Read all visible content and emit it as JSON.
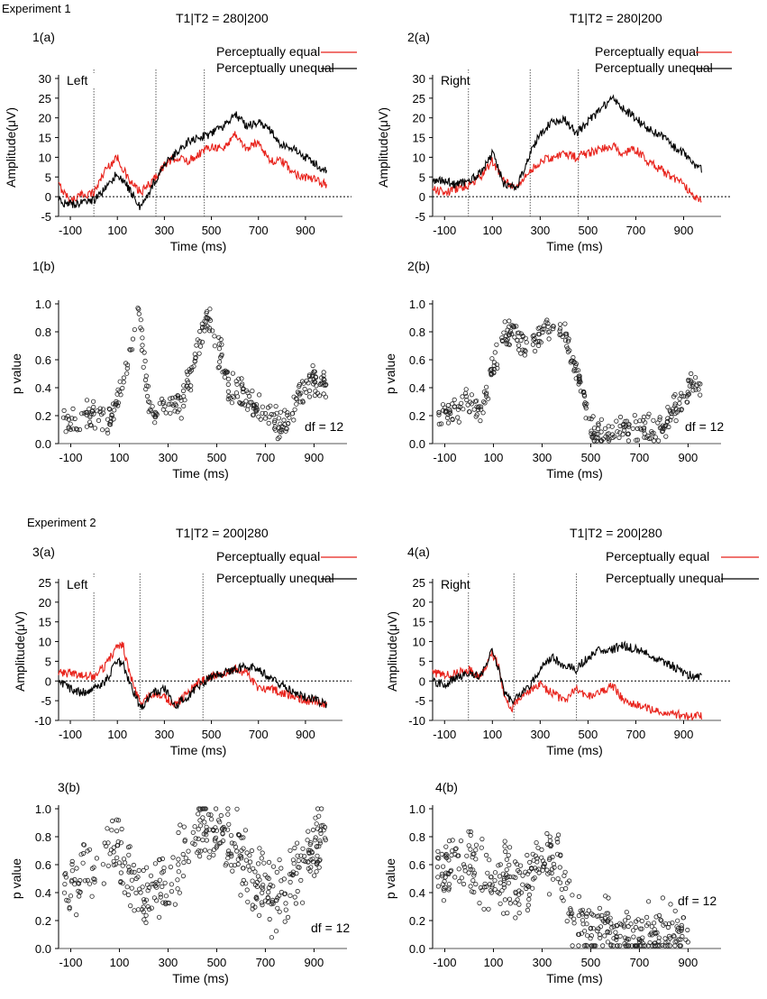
{
  "figure": {
    "experiments": [
      "Experiment 1",
      "Experiment 2"
    ]
  },
  "chart_data": [
    {
      "id": "1a",
      "type": "line",
      "panel_label": "1(a)",
      "title": "T1|T2 = 280|200",
      "side_label": "Left",
      "xlabel": "Time (ms)",
      "ylabel": "Amplitude(μV)",
      "xlim": [
        -150,
        1000
      ],
      "ylim": [
        -5,
        30
      ],
      "xticks": [
        -100,
        100,
        300,
        500,
        700,
        900
      ],
      "yticks": [
        -5,
        0,
        5,
        10,
        15,
        20,
        25,
        30
      ],
      "vlines": [
        0,
        264,
        470
      ],
      "legend": [
        "Perceptually equal",
        "Perceptually unequal"
      ],
      "series": [
        {
          "name": "Perceptually equal",
          "color": "#e8221b",
          "x": [
            -150,
            -100,
            -50,
            0,
            50,
            100,
            150,
            200,
            250,
            300,
            350,
            400,
            450,
            500,
            550,
            600,
            650,
            700,
            750,
            800,
            850,
            900,
            950,
            990
          ],
          "y": [
            3,
            -1,
            0.5,
            1,
            7,
            10,
            4,
            1,
            4,
            8,
            10,
            9,
            11,
            13,
            12,
            16,
            12,
            14,
            9,
            9,
            6,
            5,
            4,
            3
          ]
        },
        {
          "name": "Perceptually unequal",
          "color": "#000000",
          "x": [
            -150,
            -100,
            -50,
            0,
            50,
            100,
            150,
            200,
            250,
            300,
            350,
            400,
            450,
            500,
            550,
            600,
            650,
            700,
            750,
            800,
            850,
            900,
            950,
            990
          ],
          "y": [
            -1,
            -2,
            -1.5,
            -1,
            2,
            6,
            2,
            -3,
            3,
            8,
            11,
            14,
            15,
            16,
            18,
            21,
            18,
            19,
            17,
            13,
            12,
            10,
            8,
            6.5
          ]
        }
      ]
    },
    {
      "id": "2a",
      "type": "line",
      "panel_label": "2(a)",
      "title": "T1|T2 = 280|200",
      "side_label": "Right",
      "xlabel": "Time (ms)",
      "ylabel": "Amplitude(μV)",
      "xlim": [
        -150,
        1000
      ],
      "ylim": [
        -5,
        30
      ],
      "xticks": [
        -100,
        100,
        300,
        500,
        700,
        900
      ],
      "yticks": [
        -5,
        0,
        5,
        10,
        15,
        20,
        25,
        30
      ],
      "vlines": [
        0,
        258,
        460
      ],
      "legend": [
        "Perceptually equal",
        "Perceptually unequal"
      ],
      "series": [
        {
          "name": "Perceptually equal",
          "color": "#e8221b",
          "x": [
            -150,
            -100,
            -50,
            0,
            50,
            100,
            150,
            200,
            250,
            300,
            350,
            400,
            450,
            500,
            550,
            600,
            650,
            700,
            750,
            800,
            850,
            900,
            950,
            975
          ],
          "y": [
            2,
            1,
            2,
            3,
            5,
            9,
            4,
            2,
            6,
            9,
            10,
            11,
            10,
            11,
            12,
            13,
            11,
            12,
            9,
            7,
            5,
            3,
            0,
            -1
          ]
        },
        {
          "name": "Perceptually unequal",
          "color": "#000000",
          "x": [
            -150,
            -100,
            -50,
            0,
            50,
            100,
            150,
            200,
            250,
            300,
            350,
            400,
            450,
            500,
            550,
            600,
            650,
            700,
            750,
            800,
            850,
            900,
            950,
            975
          ],
          "y": [
            4,
            4,
            3,
            4,
            6,
            11,
            3,
            2,
            10,
            16,
            19,
            20,
            16,
            19,
            22,
            25,
            22,
            20,
            17,
            16,
            13,
            11,
            8,
            7
          ]
        }
      ]
    },
    {
      "id": "1b",
      "type": "scatter",
      "panel_label": "1(b)",
      "annotation": "df = 12",
      "xlabel": "Time (ms)",
      "ylabel": "p value",
      "xlim": [
        -150,
        980
      ],
      "ylim": [
        0,
        1
      ],
      "xticks": [
        -100,
        100,
        300,
        500,
        700,
        900
      ],
      "yticks": [
        "0.0",
        "0.2",
        "0.4",
        "0.6",
        "0.8",
        "1.0"
      ],
      "profile": {
        "x": [
          -130,
          -100,
          -50,
          0,
          50,
          100,
          150,
          180,
          200,
          220,
          250,
          300,
          350,
          400,
          450,
          480,
          500,
          520,
          550,
          600,
          650,
          700,
          750,
          800,
          850,
          900,
          950
        ],
        "y": [
          0.15,
          0.15,
          0.2,
          0.25,
          0.15,
          0.35,
          0.7,
          0.95,
          0.6,
          0.3,
          0.2,
          0.3,
          0.25,
          0.5,
          0.9,
          0.88,
          0.7,
          0.6,
          0.4,
          0.4,
          0.25,
          0.2,
          0.15,
          0.2,
          0.35,
          0.45,
          0.4
        ]
      },
      "spread": 0.14,
      "count": 360
    },
    {
      "id": "2b",
      "type": "scatter",
      "panel_label": "2(b)",
      "annotation": "df = 12",
      "xlabel": "Time (ms)",
      "ylabel": "p value",
      "xlim": [
        -150,
        980
      ],
      "ylim": [
        0,
        1
      ],
      "xticks": [
        -100,
        100,
        300,
        500,
        700,
        900
      ],
      "yticks": [
        "0.0",
        "0.2",
        "0.4",
        "0.6",
        "0.8",
        "1.0"
      ],
      "profile": {
        "x": [
          -130,
          -100,
          -50,
          0,
          50,
          100,
          150,
          200,
          250,
          300,
          350,
          400,
          450,
          480,
          500,
          550,
          600,
          650,
          700,
          750,
          800,
          850,
          900,
          950
        ],
        "y": [
          0.2,
          0.22,
          0.25,
          0.3,
          0.25,
          0.55,
          0.8,
          0.75,
          0.7,
          0.8,
          0.85,
          0.75,
          0.5,
          0.25,
          0.1,
          0.08,
          0.1,
          0.1,
          0.08,
          0.1,
          0.12,
          0.25,
          0.38,
          0.4
        ]
      },
      "spread": 0.12,
      "count": 360
    },
    {
      "id": "3a",
      "type": "line",
      "panel_label": "3(a)",
      "title": "T1|T2 = 200|280",
      "side_label": "Left",
      "xlabel": "Time (ms)",
      "ylabel": "Amplitude(μV)",
      "xlim": [
        -150,
        1000
      ],
      "ylim": [
        -10,
        25
      ],
      "xticks": [
        -100,
        100,
        300,
        500,
        700,
        900
      ],
      "yticks": [
        -10,
        -5,
        0,
        5,
        10,
        15,
        20,
        25
      ],
      "vlines": [
        0,
        196,
        464
      ],
      "legend": [
        "Perceptually equal",
        "Perceptually unequal"
      ],
      "series": [
        {
          "name": "Perceptually equal",
          "color": "#e8221b",
          "x": [
            -150,
            -100,
            -50,
            0,
            50,
            100,
            125,
            150,
            200,
            250,
            300,
            350,
            400,
            450,
            500,
            550,
            600,
            650,
            700,
            750,
            800,
            850,
            900,
            950,
            990
          ],
          "y": [
            2,
            2,
            1.5,
            1,
            4,
            9,
            9,
            2,
            -6,
            -3,
            -4,
            -6,
            -3,
            0,
            1,
            2,
            3,
            2,
            -2,
            -2,
            -3,
            -4,
            -5,
            -5,
            -6
          ]
        },
        {
          "name": "Perceptually unequal",
          "color": "#000000",
          "x": [
            -150,
            -100,
            -50,
            0,
            50,
            100,
            125,
            150,
            200,
            250,
            300,
            350,
            400,
            450,
            500,
            550,
            600,
            650,
            700,
            750,
            800,
            850,
            900,
            950,
            990
          ],
          "y": [
            0,
            -2,
            -3,
            -2,
            0,
            5,
            4,
            0,
            -7,
            -3,
            -2,
            -6,
            -4,
            -1,
            1,
            2,
            3,
            4,
            3,
            1,
            -1,
            -3,
            -4,
            -5,
            -6
          ]
        }
      ]
    },
    {
      "id": "4a",
      "type": "line",
      "panel_label": "4(a)",
      "title": "T1|T2 = 200|280",
      "side_label": "Right",
      "xlabel": "Time (ms)",
      "ylabel": "Amplitude(μV)",
      "xlim": [
        -150,
        1000
      ],
      "ylim": [
        -10,
        25
      ],
      "xticks": [
        -100,
        100,
        300,
        500,
        700,
        900
      ],
      "yticks": [
        -10,
        -5,
        0,
        5,
        10,
        15,
        20,
        25
      ],
      "vlines": [
        0,
        190,
        452
      ],
      "legend": [
        "Perceptually equal",
        "Perceptually unequal"
      ],
      "series": [
        {
          "name": "Perceptually equal",
          "color": "#e8221b",
          "x": [
            -150,
            -100,
            -50,
            0,
            50,
            100,
            125,
            150,
            180,
            200,
            250,
            300,
            350,
            400,
            450,
            500,
            550,
            600,
            650,
            700,
            750,
            800,
            850,
            900,
            950,
            975
          ],
          "y": [
            2,
            1.5,
            2,
            3,
            1,
            7,
            4,
            -4,
            -7,
            -5,
            -3,
            -1,
            -3,
            -5,
            -2,
            -4,
            -3,
            -1,
            -5,
            -6,
            -7,
            -8,
            -8,
            -9,
            -9,
            -9
          ]
        },
        {
          "name": "Perceptually unequal",
          "color": "#000000",
          "x": [
            -150,
            -100,
            -50,
            0,
            50,
            100,
            125,
            150,
            180,
            200,
            250,
            300,
            350,
            400,
            450,
            500,
            550,
            600,
            650,
            700,
            750,
            800,
            850,
            900,
            950,
            975
          ],
          "y": [
            0,
            -1,
            1,
            2,
            1,
            8,
            3,
            -3,
            -5,
            -4,
            -2,
            3,
            6,
            4,
            3,
            6,
            8,
            8,
            9,
            8,
            7,
            5,
            4,
            2,
            1,
            1
          ]
        }
      ]
    },
    {
      "id": "3b",
      "type": "scatter",
      "panel_label": "3(b)",
      "annotation": "df = 12",
      "xlabel": "Time (ms)",
      "ylabel": "p value",
      "xlim": [
        -150,
        980
      ],
      "ylim": [
        0,
        1
      ],
      "xticks": [
        -100,
        100,
        300,
        500,
        700,
        900
      ],
      "yticks": [
        "0.0",
        "0.2",
        "0.4",
        "0.6",
        "0.8",
        "1.0"
      ],
      "profile": {
        "x": [
          -130,
          -100,
          -50,
          0,
          50,
          100,
          150,
          200,
          250,
          300,
          350,
          400,
          450,
          500,
          550,
          600,
          650,
          700,
          750,
          800,
          850,
          900,
          950
        ],
        "y": [
          0.45,
          0.45,
          0.5,
          0.55,
          0.75,
          0.7,
          0.4,
          0.35,
          0.5,
          0.45,
          0.6,
          0.8,
          0.85,
          0.8,
          0.8,
          0.65,
          0.5,
          0.4,
          0.35,
          0.45,
          0.55,
          0.75,
          0.8
        ]
      },
      "spread": 0.3,
      "count": 420
    },
    {
      "id": "4b",
      "type": "scatter",
      "panel_label": "4(b)",
      "annotation": "df = 12",
      "xlabel": "Time (ms)",
      "ylabel": "p value",
      "xlim": [
        -150,
        980
      ],
      "ylim": [
        0,
        1
      ],
      "xticks": [
        -100,
        100,
        300,
        500,
        700,
        900
      ],
      "yticks": [
        "0.0",
        "0.2",
        "0.4",
        "0.6",
        "0.8",
        "1.0"
      ],
      "profile": {
        "x": [
          -130,
          -100,
          -50,
          0,
          50,
          100,
          150,
          200,
          250,
          300,
          350,
          380,
          420,
          460,
          500,
          550,
          600,
          650,
          700,
          750,
          800,
          850,
          900
        ],
        "y": [
          0.55,
          0.55,
          0.6,
          0.6,
          0.55,
          0.5,
          0.5,
          0.45,
          0.5,
          0.6,
          0.65,
          0.5,
          0.2,
          0.12,
          0.12,
          0.15,
          0.1,
          0.08,
          0.07,
          0.08,
          0.09,
          0.1,
          0.1
        ]
      },
      "spread": 0.28,
      "count": 420
    }
  ]
}
